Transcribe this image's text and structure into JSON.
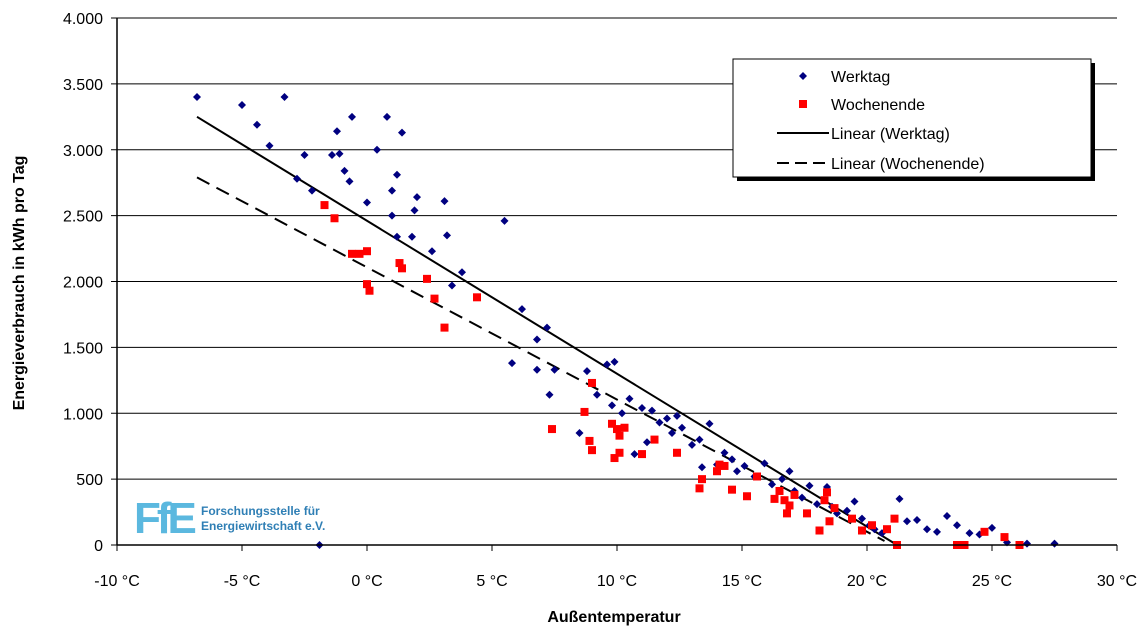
{
  "chart_data": {
    "type": "scatter",
    "title": "",
    "xlabel": "Außentemperatur",
    "ylabel": "Energieverbrauch in kWh pro Tag",
    "xlim": [
      -10,
      30
    ],
    "ylim": [
      0,
      4000
    ],
    "x_ticks": [
      -10,
      -5,
      0,
      5,
      10,
      15,
      20,
      25,
      30
    ],
    "x_tick_labels": [
      "-10 °C",
      "-5 °C",
      "0 °C",
      "5 °C",
      "10 °C",
      "15 °C",
      "20 °C",
      "25 °C",
      "30 °C"
    ],
    "y_ticks": [
      0,
      500,
      1000,
      1500,
      2000,
      2500,
      3000,
      3500,
      4000
    ],
    "y_tick_labels": [
      "0",
      "500",
      "1.000",
      "1.500",
      "2.000",
      "2.500",
      "3.000",
      "3.500",
      "4.000"
    ],
    "grid": "horizontal",
    "legend_position": "top-right",
    "legend": [
      "Werktag",
      "Wochenende",
      "Linear (Werktag)",
      "Linear (Wochenende)"
    ],
    "colors": {
      "werktag": "#000080",
      "wochenende": "#ff0000",
      "trend": "#000000"
    },
    "series": [
      {
        "name": "Werktag",
        "marker": "diamond",
        "points": [
          [
            -6.8,
            3400
          ],
          [
            -5.0,
            3340
          ],
          [
            -4.4,
            3190
          ],
          [
            -3.3,
            3400
          ],
          [
            -3.9,
            3030
          ],
          [
            -2.5,
            2960
          ],
          [
            -2.8,
            2780
          ],
          [
            -2.2,
            2690
          ],
          [
            -1.4,
            2960
          ],
          [
            -1.1,
            2970
          ],
          [
            -1.2,
            3140
          ],
          [
            -0.6,
            3250
          ],
          [
            -0.9,
            2840
          ],
          [
            -0.7,
            2760
          ],
          [
            0.0,
            2600
          ],
          [
            0.4,
            3000
          ],
          [
            0.8,
            3250
          ],
          [
            1.2,
            2810
          ],
          [
            1.4,
            3130
          ],
          [
            1.0,
            2690
          ],
          [
            1.0,
            2500
          ],
          [
            1.2,
            2340
          ],
          [
            1.8,
            2340
          ],
          [
            1.9,
            2540
          ],
          [
            2.0,
            2640
          ],
          [
            2.6,
            2230
          ],
          [
            3.1,
            2610
          ],
          [
            3.2,
            2350
          ],
          [
            3.4,
            1970
          ],
          [
            3.8,
            2070
          ],
          [
            5.5,
            2460
          ],
          [
            6.2,
            1790
          ],
          [
            5.8,
            1380
          ],
          [
            6.8,
            1560
          ],
          [
            6.8,
            1330
          ],
          [
            7.2,
            1650
          ],
          [
            7.5,
            1330
          ],
          [
            7.3,
            1140
          ],
          [
            8.8,
            1320
          ],
          [
            9.2,
            1140
          ],
          [
            9.6,
            1370
          ],
          [
            9.9,
            1390
          ],
          [
            9.8,
            1060
          ],
          [
            10.2,
            1000
          ],
          [
            10.5,
            1110
          ],
          [
            11.0,
            1040
          ],
          [
            11.4,
            1020
          ],
          [
            11.2,
            780
          ],
          [
            11.7,
            930
          ],
          [
            12.0,
            960
          ],
          [
            12.4,
            980
          ],
          [
            12.6,
            890
          ],
          [
            13.0,
            760
          ],
          [
            13.3,
            800
          ],
          [
            13.7,
            920
          ],
          [
            14.0,
            610
          ],
          [
            14.3,
            700
          ],
          [
            14.6,
            650
          ],
          [
            14.8,
            560
          ],
          [
            15.1,
            600
          ],
          [
            15.5,
            520
          ],
          [
            15.9,
            620
          ],
          [
            16.2,
            460
          ],
          [
            16.6,
            500
          ],
          [
            16.9,
            560
          ],
          [
            17.1,
            410
          ],
          [
            17.4,
            360
          ],
          [
            17.7,
            450
          ],
          [
            18.0,
            310
          ],
          [
            18.4,
            440
          ],
          [
            18.6,
            290
          ],
          [
            18.8,
            240
          ],
          [
            19.2,
            260
          ],
          [
            19.5,
            330
          ],
          [
            19.8,
            200
          ],
          [
            20.1,
            150
          ],
          [
            20.3,
            120
          ],
          [
            20.6,
            90
          ],
          [
            21.3,
            350
          ],
          [
            21.6,
            180
          ],
          [
            22.0,
            190
          ],
          [
            22.4,
            120
          ],
          [
            22.8,
            100
          ],
          [
            23.2,
            220
          ],
          [
            23.6,
            150
          ],
          [
            24.1,
            90
          ],
          [
            24.5,
            80
          ],
          [
            25.0,
            130
          ],
          [
            25.6,
            20
          ],
          [
            26.4,
            10
          ],
          [
            27.5,
            10
          ],
          [
            -1.9,
            0
          ],
          [
            8.5,
            850
          ],
          [
            10.7,
            690
          ],
          [
            12.2,
            850
          ],
          [
            13.4,
            590
          ]
        ]
      },
      {
        "name": "Wochenende",
        "marker": "square",
        "points": [
          [
            -1.7,
            2580
          ],
          [
            -1.3,
            2480
          ],
          [
            -0.6,
            2210
          ],
          [
            -0.3,
            2210
          ],
          [
            0.0,
            2230
          ],
          [
            0.0,
            1980
          ],
          [
            0.1,
            1930
          ],
          [
            1.3,
            2140
          ],
          [
            1.4,
            2100
          ],
          [
            2.4,
            2020
          ],
          [
            2.7,
            1870
          ],
          [
            3.1,
            1650
          ],
          [
            4.4,
            1880
          ],
          [
            7.4,
            880
          ],
          [
            8.7,
            1010
          ],
          [
            8.9,
            790
          ],
          [
            9.0,
            720
          ],
          [
            9.0,
            1230
          ],
          [
            9.8,
            920
          ],
          [
            9.9,
            660
          ],
          [
            10.0,
            880
          ],
          [
            10.1,
            830
          ],
          [
            10.3,
            890
          ],
          [
            10.1,
            700
          ],
          [
            11.0,
            690
          ],
          [
            11.5,
            800
          ],
          [
            12.4,
            700
          ],
          [
            13.3,
            430
          ],
          [
            13.4,
            500
          ],
          [
            14.0,
            560
          ],
          [
            14.1,
            610
          ],
          [
            14.3,
            600
          ],
          [
            14.6,
            420
          ],
          [
            15.2,
            370
          ],
          [
            15.6,
            520
          ],
          [
            16.3,
            350
          ],
          [
            16.5,
            410
          ],
          [
            16.7,
            340
          ],
          [
            16.8,
            240
          ],
          [
            17.1,
            380
          ],
          [
            17.6,
            240
          ],
          [
            18.1,
            110
          ],
          [
            18.3,
            340
          ],
          [
            18.5,
            180
          ],
          [
            18.7,
            280
          ],
          [
            19.4,
            200
          ],
          [
            19.8,
            110
          ],
          [
            20.2,
            150
          ],
          [
            20.8,
            120
          ],
          [
            21.1,
            200
          ],
          [
            21.2,
            0
          ],
          [
            23.6,
            0
          ],
          [
            23.9,
            0
          ],
          [
            24.7,
            100
          ],
          [
            25.5,
            60
          ],
          [
            26.1,
            0
          ],
          [
            18.4,
            400
          ],
          [
            16.9,
            300
          ]
        ]
      }
    ],
    "trendlines": [
      {
        "name": "Linear (Werktag)",
        "style": "solid",
        "from": [
          -6.8,
          3250
        ],
        "to": [
          21.2,
          0
        ]
      },
      {
        "name": "Linear (Wochenende)",
        "style": "dashed",
        "from": [
          -6.8,
          2790
        ],
        "to": [
          20.7,
          30
        ]
      }
    ]
  },
  "logo": {
    "abbr": "FfE",
    "line1": "Forschungsstelle für",
    "line2": "Energiewirtschaft e.V."
  }
}
